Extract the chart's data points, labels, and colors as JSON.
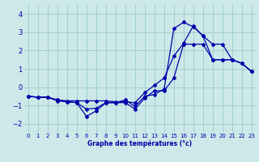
{
  "bg_color": "#cce8e8",
  "grid_color": "#99cccc",
  "line_color": "#0000aa",
  "xlim": [
    -0.5,
    23.5
  ],
  "ylim": [
    -2.5,
    4.5
  ],
  "x_ticks": [
    0,
    1,
    2,
    3,
    4,
    5,
    6,
    7,
    8,
    9,
    10,
    11,
    12,
    13,
    14,
    15,
    16,
    17,
    18,
    19,
    20,
    21,
    22,
    23
  ],
  "y_ticks": [
    -2,
    -1,
    0,
    1,
    2,
    3,
    4
  ],
  "series1_x": [
    0,
    1,
    2,
    3,
    4,
    5,
    6,
    7,
    8,
    9,
    10,
    11,
    12,
    13,
    14,
    15,
    16,
    17,
    18,
    19,
    20,
    21,
    22,
    23
  ],
  "series1_y": [
    -0.5,
    -0.55,
    -0.55,
    -0.7,
    -0.75,
    -0.75,
    -0.75,
    -0.75,
    -0.75,
    -0.8,
    -0.8,
    -0.85,
    -0.3,
    0.1,
    0.5,
    1.7,
    2.4,
    3.35,
    2.8,
    1.5,
    1.5,
    1.5,
    1.3,
    0.85
  ],
  "series2_x": [
    0,
    1,
    2,
    3,
    4,
    5,
    6,
    7,
    8,
    9,
    10,
    11,
    12,
    13,
    14,
    15,
    16,
    17,
    18,
    19,
    20,
    21,
    22,
    23
  ],
  "series2_y": [
    -0.5,
    -0.55,
    -0.55,
    -0.7,
    -0.8,
    -0.85,
    -1.2,
    -1.15,
    -0.85,
    -0.85,
    -0.7,
    -1.05,
    -0.5,
    -0.4,
    -0.1,
    3.2,
    3.55,
    3.3,
    2.8,
    2.35,
    2.35,
    1.5,
    1.3,
    0.85
  ],
  "series3_x": [
    0,
    1,
    2,
    3,
    4,
    5,
    6,
    7,
    8,
    9,
    10,
    11,
    12,
    13,
    14,
    15,
    16,
    17,
    18,
    19,
    20,
    21,
    22,
    23
  ],
  "series3_y": [
    -0.5,
    -0.55,
    -0.55,
    -0.75,
    -0.8,
    -0.85,
    -1.6,
    -1.3,
    -0.85,
    -0.85,
    -0.85,
    -1.2,
    -0.6,
    -0.2,
    -0.2,
    0.5,
    2.35,
    2.35,
    2.35,
    1.5,
    1.5,
    1.5,
    1.3,
    0.85
  ],
  "xlabel": "Graphe des températures (°c)"
}
